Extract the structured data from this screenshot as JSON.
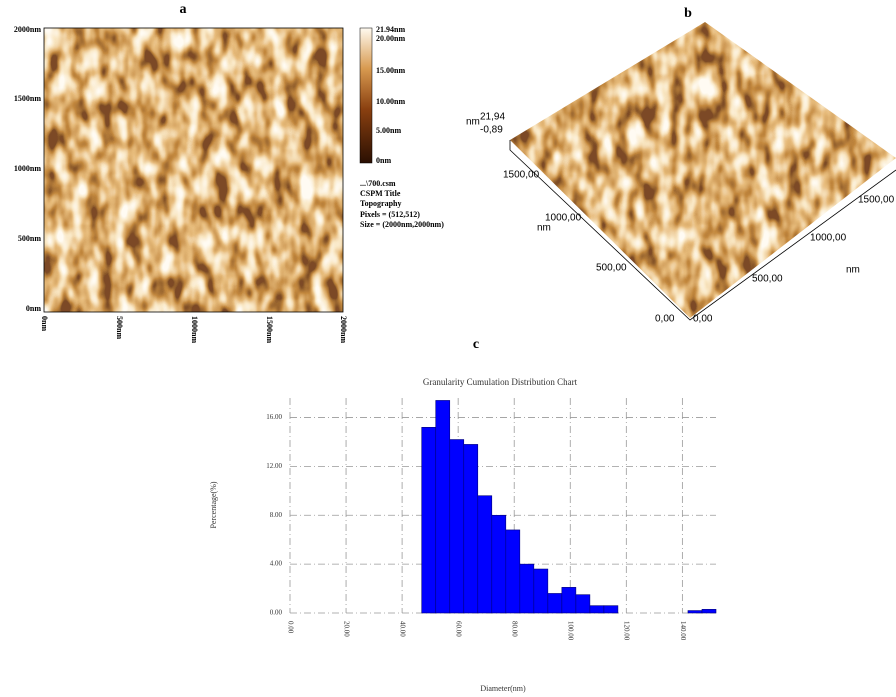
{
  "panel_a": {
    "label": "a",
    "y_ticks": [
      "2000nm",
      "1500nm",
      "1000nm",
      "500nm",
      "0nm"
    ],
    "x_ticks": [
      "0nm",
      "500nm",
      "1000nm",
      "1500nm",
      "2000nm"
    ],
    "colorbar": [
      "21.94nm",
      "20.00nm",
      "15.00nm",
      "10.00nm",
      "5.00nm",
      "0nm"
    ],
    "info": [
      "...\\700.csm",
      "CSPM Title",
      "Topography",
      "Pixels = (512,512)",
      "Size = (2000nm,2000nm)"
    ]
  },
  "panel_b": {
    "label": "b",
    "z_unit": "nm",
    "z_max": "21,94",
    "z_min": "-0,89",
    "y_ticks": [
      "1500,00",
      "1000,00",
      "500,00",
      "0,00"
    ],
    "y_unit": "nm",
    "x_ticks": [
      "0,00",
      "500,00",
      "1000,00",
      "1500,00"
    ],
    "x_unit": "nm"
  },
  "panel_c_label": "c",
  "chart_data": {
    "type": "histogram",
    "title": "Granularity Cumulation Distribution  Chart",
    "x_label": "Diameter(nm)",
    "y_label": "Percentage(%)",
    "color": "#0000ff",
    "grid": true,
    "bins": [
      47,
      52,
      57,
      62,
      67,
      72,
      77,
      82,
      87,
      92,
      97,
      102,
      107,
      112,
      117,
      122,
      127,
      132,
      137,
      142,
      147,
      152
    ],
    "values": [
      15.2,
      17.4,
      14.2,
      13.8,
      9.6,
      8.0,
      6.8,
      4.0,
      3.6,
      1.6,
      2.1,
      1.5,
      0.6,
      0.6,
      0,
      0,
      0,
      0,
      0,
      0.2,
      0.3
    ],
    "xlim": [
      0,
      152
    ],
    "ylim": [
      0,
      17.6
    ],
    "xticks": [
      {
        "value": 0,
        "label": "0.00"
      },
      {
        "value": 20,
        "label": "20.00"
      },
      {
        "value": 40,
        "label": "40.00"
      },
      {
        "value": 60,
        "label": "60.00"
      },
      {
        "value": 80,
        "label": "80.00"
      },
      {
        "value": 100,
        "label": "100.00"
      },
      {
        "value": 120,
        "label": "120.00"
      },
      {
        "value": 140,
        "label": "140.00"
      }
    ],
    "yticks": [
      {
        "value": 0,
        "label": "0.00"
      },
      {
        "value": 4,
        "label": "4.00"
      },
      {
        "value": 8,
        "label": "8.00"
      },
      {
        "value": 12,
        "label": "12.00"
      },
      {
        "value": 16,
        "label": "16.00"
      }
    ]
  }
}
